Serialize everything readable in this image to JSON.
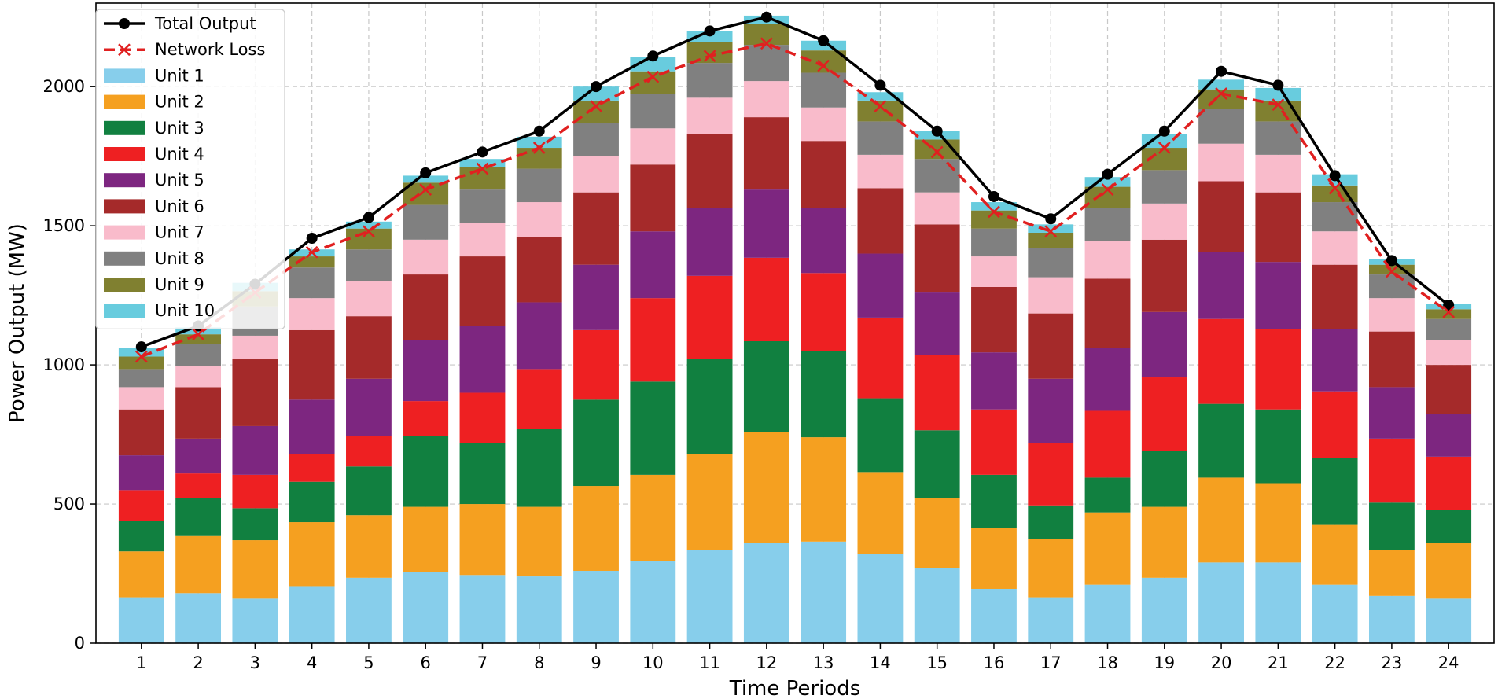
{
  "chart_data": {
    "type": "bar",
    "stacked": true,
    "xlabel": "Time Periods",
    "ylabel": "Power Output (MW)",
    "ylim": [
      0,
      2300
    ],
    "yticks": [
      0,
      500,
      1000,
      1500,
      2000
    ],
    "grid": true,
    "legend_position": "top-left",
    "categories": [
      "1",
      "2",
      "3",
      "4",
      "5",
      "6",
      "7",
      "8",
      "9",
      "10",
      "11",
      "12",
      "13",
      "14",
      "15",
      "16",
      "17",
      "18",
      "19",
      "20",
      "21",
      "22",
      "23",
      "24"
    ],
    "series": [
      {
        "name": "Unit 1",
        "color": "#87CEEB",
        "values": [
          165,
          180,
          160,
          205,
          235,
          255,
          245,
          240,
          260,
          295,
          335,
          360,
          365,
          320,
          270,
          195,
          165,
          210,
          235,
          290,
          290,
          210,
          170,
          160
        ]
      },
      {
        "name": "Unit 2",
        "color": "#F5A020",
        "values": [
          165,
          205,
          210,
          230,
          225,
          235,
          255,
          250,
          305,
          310,
          345,
          400,
          375,
          295,
          250,
          220,
          210,
          260,
          255,
          305,
          285,
          215,
          165,
          200
        ]
      },
      {
        "name": "Unit 3",
        "color": "#118040",
        "values": [
          110,
          135,
          115,
          145,
          175,
          255,
          220,
          280,
          310,
          335,
          340,
          325,
          310,
          265,
          245,
          190,
          120,
          125,
          200,
          265,
          265,
          240,
          170,
          120
        ]
      },
      {
        "name": "Unit 4",
        "color": "#EE2022",
        "values": [
          110,
          90,
          120,
          100,
          110,
          125,
          180,
          215,
          250,
          300,
          300,
          300,
          280,
          290,
          270,
          235,
          225,
          240,
          265,
          305,
          290,
          240,
          230,
          190
        ]
      },
      {
        "name": "Unit 5",
        "color": "#7D2680",
        "values": [
          125,
          125,
          175,
          195,
          205,
          220,
          240,
          240,
          235,
          240,
          245,
          245,
          235,
          230,
          225,
          205,
          230,
          225,
          235,
          240,
          240,
          225,
          185,
          155
        ]
      },
      {
        "name": "Unit 6",
        "color": "#A52A2A",
        "values": [
          165,
          185,
          240,
          250,
          225,
          235,
          250,
          235,
          260,
          240,
          265,
          260,
          240,
          235,
          245,
          235,
          235,
          250,
          260,
          255,
          250,
          230,
          200,
          175
        ]
      },
      {
        "name": "Unit 7",
        "color": "#F9BBCB",
        "values": [
          80,
          75,
          85,
          115,
          125,
          125,
          120,
          125,
          130,
          130,
          130,
          130,
          120,
          120,
          115,
          110,
          130,
          135,
          130,
          135,
          135,
          120,
          120,
          90
        ]
      },
      {
        "name": "Unit 8",
        "color": "#808080",
        "values": [
          65,
          80,
          105,
          110,
          115,
          125,
          120,
          120,
          120,
          125,
          125,
          130,
          125,
          120,
          120,
          100,
          105,
          120,
          120,
          125,
          120,
          105,
          85,
          75
        ]
      },
      {
        "name": "Unit 9",
        "color": "#808030",
        "values": [
          45,
          35,
          55,
          40,
          75,
          80,
          80,
          75,
          80,
          80,
          75,
          75,
          80,
          75,
          70,
          65,
          55,
          75,
          80,
          70,
          75,
          60,
          35,
          35
        ]
      },
      {
        "name": "Unit 10",
        "color": "#68CCDE",
        "values": [
          30,
          25,
          30,
          25,
          25,
          25,
          30,
          40,
          50,
          50,
          40,
          30,
          35,
          30,
          30,
          30,
          30,
          35,
          50,
          35,
          45,
          40,
          20,
          20
        ]
      }
    ],
    "lines": [
      {
        "name": "Total Output",
        "color": "#000000",
        "style": "solid",
        "marker": "circle",
        "values": [
          1065,
          1140,
          1290,
          1455,
          1530,
          1690,
          1765,
          1840,
          2000,
          2110,
          2200,
          2250,
          2165,
          2005,
          1840,
          1605,
          1525,
          1685,
          1840,
          2055,
          2005,
          1680,
          1375,
          1215
        ]
      },
      {
        "name": "Network Loss",
        "color": "#E02020",
        "style": "dashed",
        "marker": "x",
        "values": [
          1030,
          1110,
          1260,
          1405,
          1480,
          1630,
          1705,
          1780,
          1930,
          2035,
          2110,
          2155,
          2075,
          1930,
          1765,
          1550,
          1480,
          1630,
          1780,
          1975,
          1935,
          1635,
          1335,
          1190
        ]
      }
    ]
  }
}
